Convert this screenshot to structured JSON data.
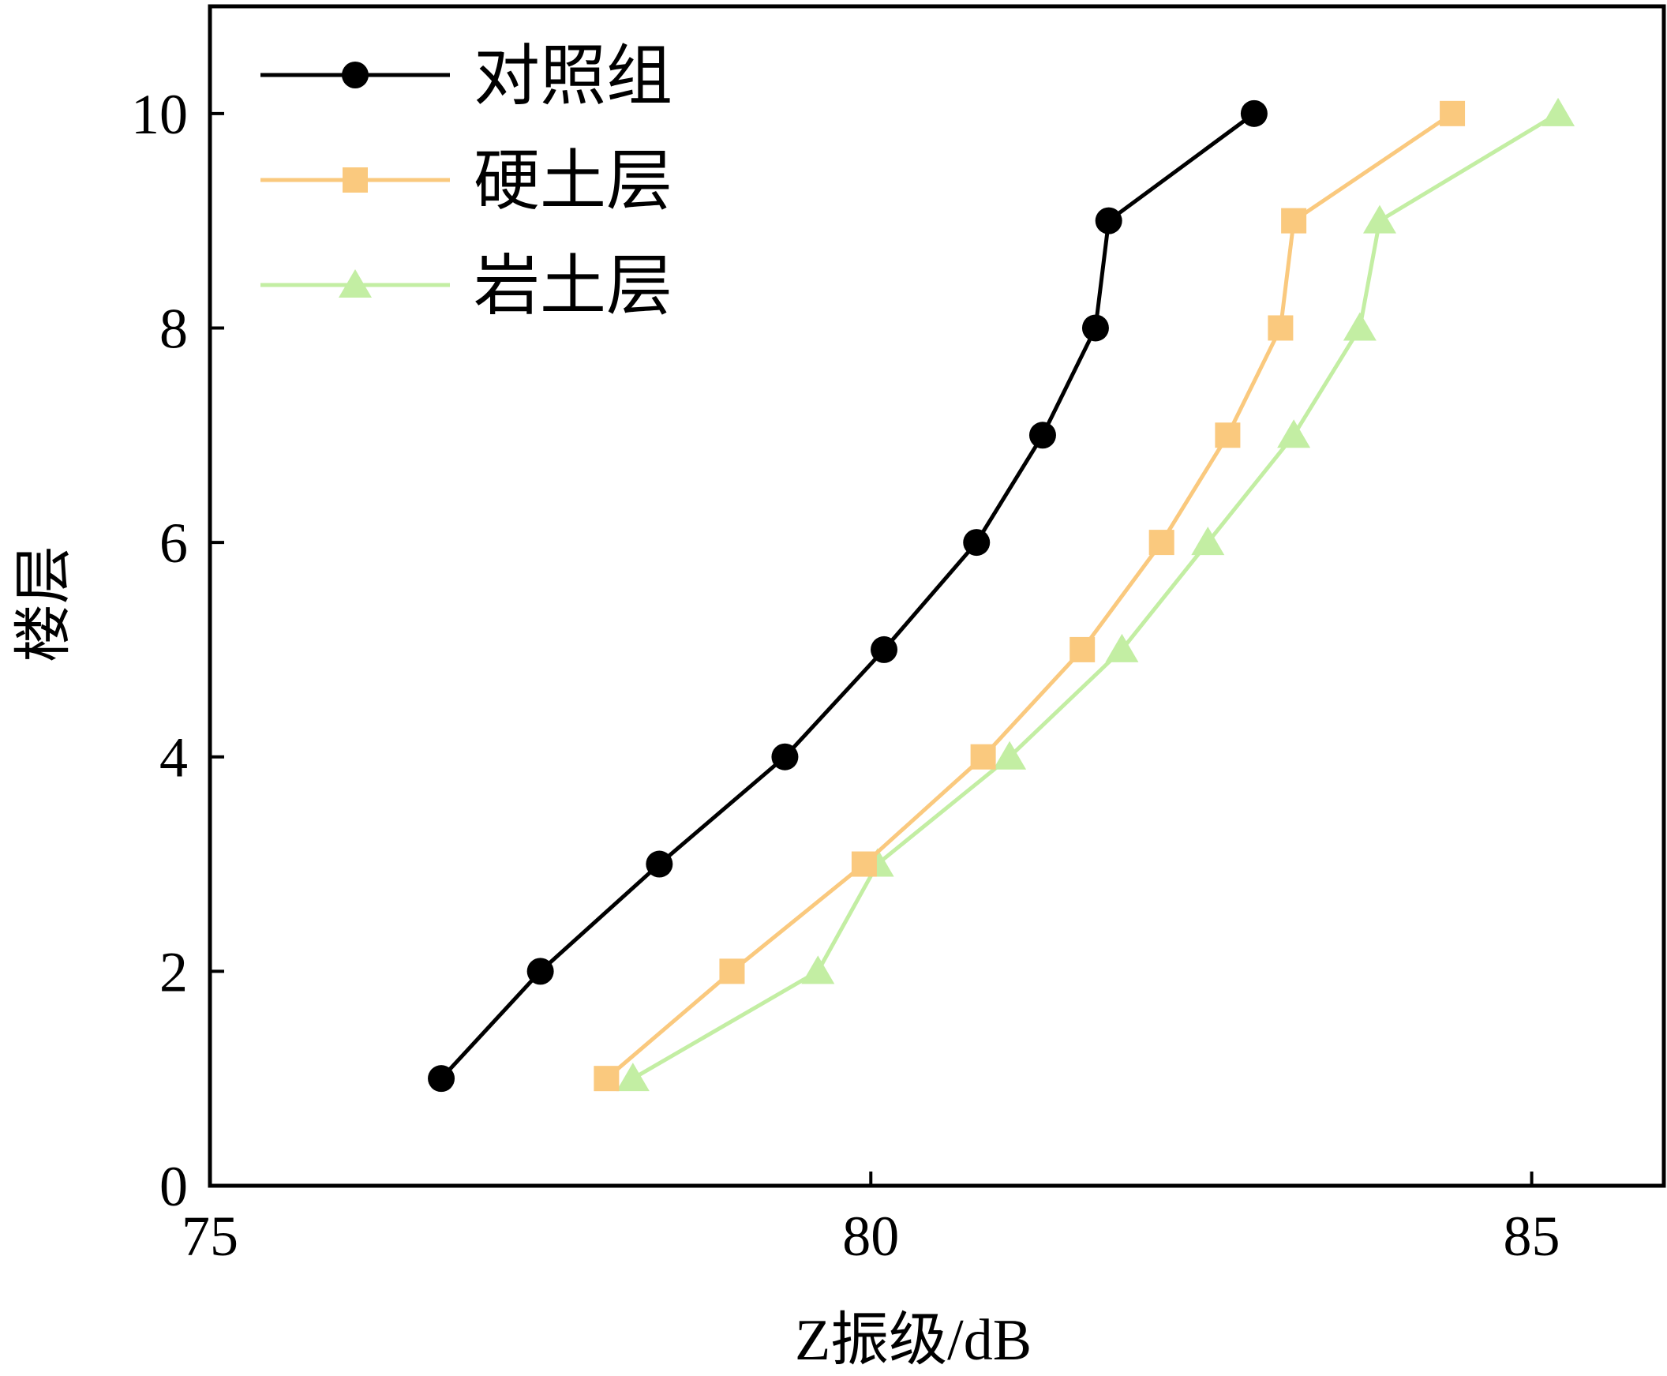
{
  "chart_data": {
    "type": "line",
    "title": "",
    "xlabel": "Z振级/dB",
    "ylabel": "楼层",
    "xlim": [
      75,
      86
    ],
    "ylim": [
      0,
      11
    ],
    "xticks": [
      75,
      80,
      85
    ],
    "yticks": [
      0,
      2,
      4,
      6,
      8,
      10
    ],
    "grid": false,
    "legend_position": "top-left",
    "series": [
      {
        "name": "对照组",
        "color": "#000000",
        "marker": "circle",
        "x": [
          76.75,
          77.5,
          78.4,
          79.35,
          80.1,
          80.8,
          81.3,
          81.7,
          81.8,
          82.9
        ],
        "y": [
          1,
          2,
          3,
          4,
          5,
          6,
          7,
          8,
          9,
          10
        ]
      },
      {
        "name": "硬土层",
        "color": "#FAC97E",
        "marker": "square",
        "x": [
          78.0,
          78.95,
          79.95,
          80.85,
          81.6,
          82.2,
          82.7,
          83.1,
          83.2,
          84.4
        ],
        "y": [
          1,
          2,
          3,
          4,
          5,
          6,
          7,
          8,
          9,
          10
        ]
      },
      {
        "name": "岩土层",
        "color": "#C3EEA3",
        "marker": "triangle",
        "x": [
          78.2,
          79.6,
          80.05,
          81.05,
          81.9,
          82.55,
          83.2,
          83.7,
          83.85,
          85.2
        ],
        "y": [
          1,
          2,
          3,
          4,
          5,
          6,
          7,
          8,
          9,
          10
        ]
      }
    ]
  }
}
